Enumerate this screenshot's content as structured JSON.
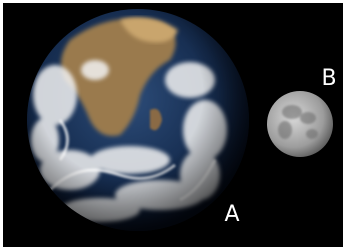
{
  "labels": {
    "earth": "A",
    "moon": "B"
  }
}
